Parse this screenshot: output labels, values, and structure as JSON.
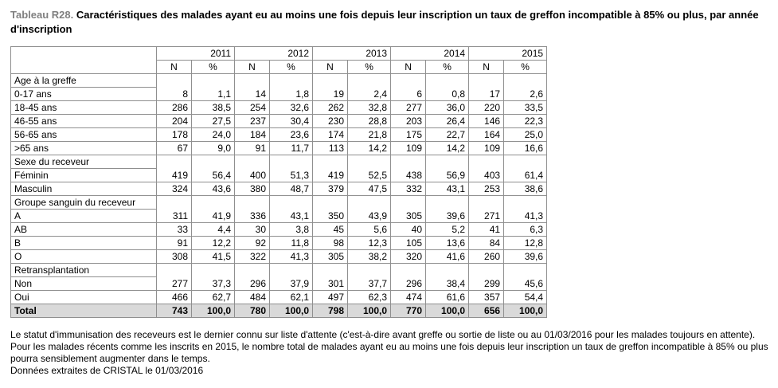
{
  "title": {
    "prefix": "Tableau R28.",
    "text": " Caractéristiques des malades ayant eu au moins une fois depuis leur inscription un taux de greffon incompatible à 85% ou plus, par année d'inscription"
  },
  "chart_data": {
    "type": "table",
    "title": "Caractéristiques des malades ayant eu au moins une fois depuis leur inscription un taux de greffon incompatible à 85% ou plus, par année d'inscription",
    "years": [
      "2011",
      "2012",
      "2013",
      "2014",
      "2015"
    ],
    "subheaders": [
      "N",
      "%"
    ],
    "sections": [
      {
        "label": "Age à la greffe",
        "rows": [
          {
            "label": "0-17 ans",
            "values": [
              "8",
              "1,1",
              "14",
              "1,8",
              "19",
              "2,4",
              "6",
              "0,8",
              "17",
              "2,6"
            ]
          },
          {
            "label": "18-45 ans",
            "values": [
              "286",
              "38,5",
              "254",
              "32,6",
              "262",
              "32,8",
              "277",
              "36,0",
              "220",
              "33,5"
            ]
          },
          {
            "label": "46-55 ans",
            "values": [
              "204",
              "27,5",
              "237",
              "30,4",
              "230",
              "28,8",
              "203",
              "26,4",
              "146",
              "22,3"
            ]
          },
          {
            "label": "56-65 ans",
            "values": [
              "178",
              "24,0",
              "184",
              "23,6",
              "174",
              "21,8",
              "175",
              "22,7",
              "164",
              "25,0"
            ]
          },
          {
            "label": ">65 ans",
            "values": [
              "67",
              "9,0",
              "91",
              "11,7",
              "113",
              "14,2",
              "109",
              "14,2",
              "109",
              "16,6"
            ]
          }
        ]
      },
      {
        "label": "Sexe du receveur",
        "rows": [
          {
            "label": "Féminin",
            "values": [
              "419",
              "56,4",
              "400",
              "51,3",
              "419",
              "52,5",
              "438",
              "56,9",
              "403",
              "61,4"
            ]
          },
          {
            "label": "Masculin",
            "values": [
              "324",
              "43,6",
              "380",
              "48,7",
              "379",
              "47,5",
              "332",
              "43,1",
              "253",
              "38,6"
            ]
          }
        ]
      },
      {
        "label": "Groupe sanguin du receveur",
        "rows": [
          {
            "label": "A",
            "values": [
              "311",
              "41,9",
              "336",
              "43,1",
              "350",
              "43,9",
              "305",
              "39,6",
              "271",
              "41,3"
            ]
          },
          {
            "label": "AB",
            "values": [
              "33",
              "4,4",
              "30",
              "3,8",
              "45",
              "5,6",
              "40",
              "5,2",
              "41",
              "6,3"
            ]
          },
          {
            "label": "B",
            "values": [
              "91",
              "12,2",
              "92",
              "11,8",
              "98",
              "12,3",
              "105",
              "13,6",
              "84",
              "12,8"
            ]
          },
          {
            "label": "O",
            "values": [
              "308",
              "41,5",
              "322",
              "41,3",
              "305",
              "38,2",
              "320",
              "41,6",
              "260",
              "39,6"
            ]
          }
        ]
      },
      {
        "label": "Retransplantation",
        "rows": [
          {
            "label": "Non",
            "values": [
              "277",
              "37,3",
              "296",
              "37,9",
              "301",
              "37,7",
              "296",
              "38,4",
              "299",
              "45,6"
            ]
          },
          {
            "label": "Oui",
            "values": [
              "466",
              "62,7",
              "484",
              "62,1",
              "497",
              "62,3",
              "474",
              "61,6",
              "357",
              "54,4"
            ]
          }
        ]
      }
    ],
    "total": {
      "label": "Total",
      "values": [
        "743",
        "100,0",
        "780",
        "100,0",
        "798",
        "100,0",
        "770",
        "100,0",
        "656",
        "100,0"
      ]
    },
    "colors": {
      "grid": "#8f8f8f",
      "total_row_bg": "#d9d9d9",
      "title_prefix": "#808080"
    }
  },
  "footnotes": [
    "Le statut d'immunisation des receveurs est le dernier connu sur liste d'attente (c'est-à-dire avant greffe ou sortie de liste ou au 01/03/2016 pour les malades toujours en attente). Pour les malades récents comme les inscrits en 2015, le nombre total de malades ayant eu au moins une fois depuis leur inscription un taux de greffon incompatible à 85% ou plus pourra sensiblement augmenter dans le temps.",
    "Données extraites de CRISTAL le 01/03/2016"
  ]
}
